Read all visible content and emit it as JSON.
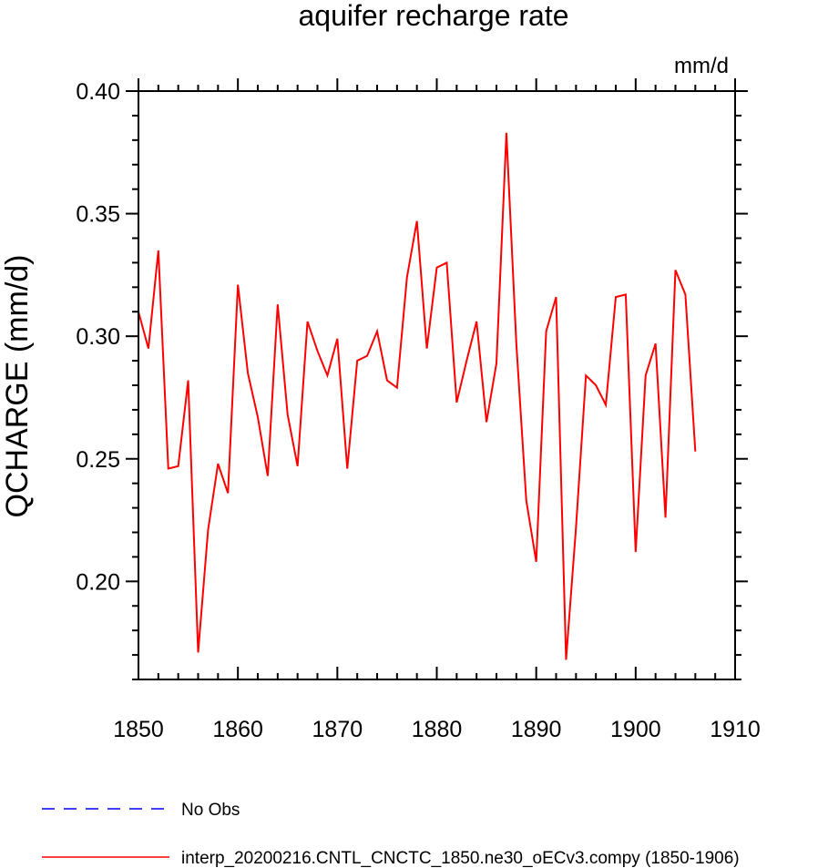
{
  "chart_data": {
    "type": "line",
    "title": "aquifer recharge rate",
    "units_label": "mm/d",
    "ylabel": "QCHARGE  (mm/d)",
    "xlabel": "",
    "xlim": [
      1850,
      1910
    ],
    "ylim": [
      0.16,
      0.4
    ],
    "x_ticks": [
      1850,
      1860,
      1870,
      1880,
      1890,
      1900,
      1910
    ],
    "x_tick_labels": [
      "1850",
      "1860",
      "1870",
      "1880",
      "1890",
      "1900",
      "1910"
    ],
    "y_ticks": [
      0.2,
      0.25,
      0.3,
      0.35,
      0.4
    ],
    "y_tick_labels": [
      "0.20",
      "0.25",
      "0.30",
      "0.35",
      "0.40"
    ],
    "series": [
      {
        "name": "No Obs",
        "color": "#0000ff",
        "dash": true,
        "x": [],
        "values": []
      },
      {
        "name": "interp_20200216.CNTL_CNCTC_1850.ne30_oECv3.compy (1850-1906)",
        "color": "#ff0000",
        "dash": false,
        "x": [
          1850,
          1851,
          1852,
          1853,
          1854,
          1855,
          1856,
          1857,
          1858,
          1859,
          1860,
          1861,
          1862,
          1863,
          1864,
          1865,
          1866,
          1867,
          1868,
          1869,
          1870,
          1871,
          1872,
          1873,
          1874,
          1875,
          1876,
          1877,
          1878,
          1879,
          1880,
          1881,
          1882,
          1883,
          1884,
          1885,
          1886,
          1887,
          1888,
          1889,
          1890,
          1891,
          1892,
          1893,
          1894,
          1895,
          1896,
          1897,
          1898,
          1899,
          1900,
          1901,
          1902,
          1903,
          1904,
          1905,
          1906
        ],
        "values": [
          0.31,
          0.295,
          0.335,
          0.246,
          0.247,
          0.282,
          0.171,
          0.221,
          0.248,
          0.236,
          0.321,
          0.285,
          0.267,
          0.243,
          0.313,
          0.268,
          0.247,
          0.306,
          0.294,
          0.284,
          0.299,
          0.246,
          0.29,
          0.292,
          0.302,
          0.282,
          0.279,
          0.324,
          0.347,
          0.295,
          0.328,
          0.33,
          0.273,
          0.29,
          0.306,
          0.265,
          0.289,
          0.383,
          0.297,
          0.233,
          0.208,
          0.302,
          0.316,
          0.168,
          0.222,
          0.284,
          0.28,
          0.272,
          0.316,
          0.317,
          0.212,
          0.284,
          0.297,
          0.226,
          0.327,
          0.317,
          0.253
        ]
      }
    ],
    "legend_position": "bottom-left"
  }
}
